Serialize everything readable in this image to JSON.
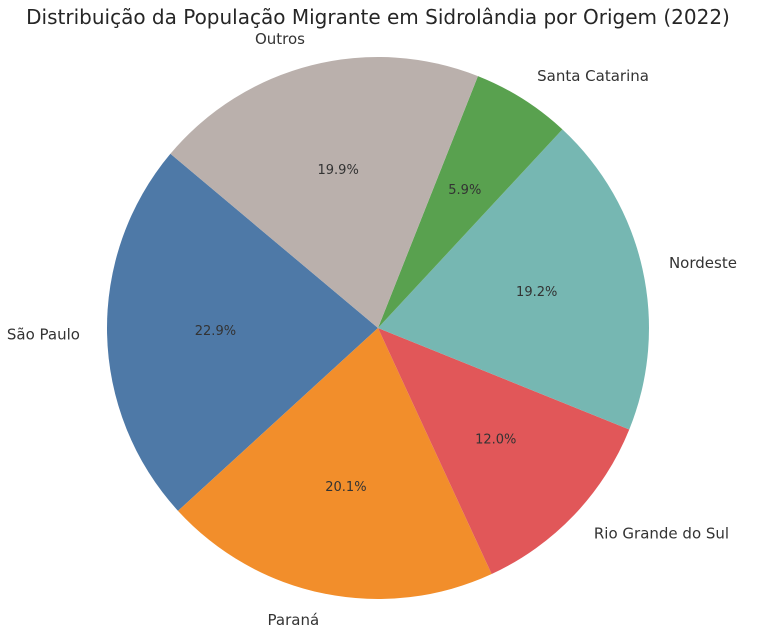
{
  "chart_data": {
    "type": "pie",
    "title": "Distribuição da População Migrante em Sidrolândia por Origem (2022)",
    "start_angle": 140,
    "direction": "counterclockwise",
    "slices": [
      {
        "label": "São Paulo",
        "value": 22.9,
        "pct_label": "22.9%",
        "color": "#4e79a7"
      },
      {
        "label": "Paraná",
        "value": 20.1,
        "pct_label": "20.1%",
        "color": "#f28e2b"
      },
      {
        "label": "Rio Grande do Sul",
        "value": 12.0,
        "pct_label": "12.0%",
        "color": "#e15759"
      },
      {
        "label": "Nordeste",
        "value": 19.2,
        "pct_label": "19.2%",
        "color": "#76b7b2"
      },
      {
        "label": "Santa Catarina",
        "value": 5.9,
        "pct_label": "5.9%",
        "color": "#59a14f"
      },
      {
        "label": "Outros",
        "value": 19.9,
        "pct_label": "19.9%",
        "color": "#bab0ac"
      }
    ]
  }
}
